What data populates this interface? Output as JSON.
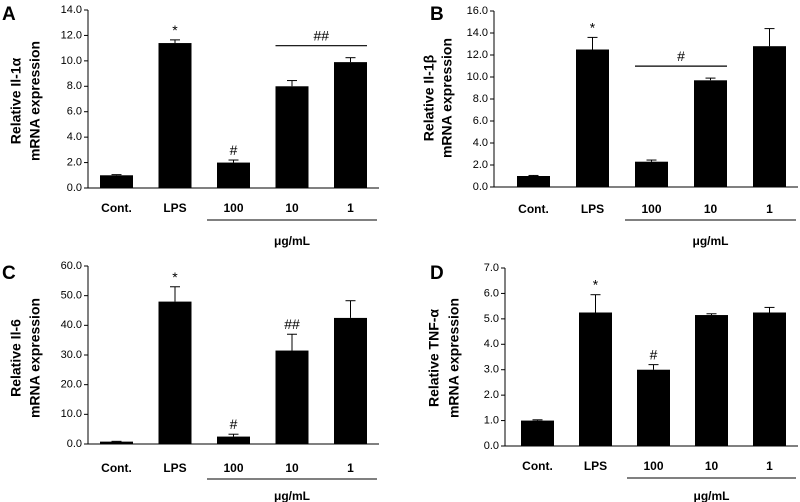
{
  "chart_data": [
    {
      "type": "bar",
      "panel_label": "A",
      "ylabel_line1": "Relative Il-1α",
      "ylabel_line2": "mRNA expression",
      "categories": [
        "Cont.",
        "LPS",
        "100",
        "10",
        "1"
      ],
      "values": [
        1.0,
        11.4,
        2.0,
        8.0,
        9.9
      ],
      "errors": [
        0.05,
        0.25,
        0.2,
        0.45,
        0.35
      ],
      "ylim": [
        0,
        14
      ],
      "yticks": [
        "0.0",
        "2.0",
        "4.0",
        "6.0",
        "8.0",
        "10.0",
        "12.0",
        "14.0"
      ],
      "dose_unit": "μg/mL",
      "markers": [
        {
          "category": "LPS",
          "text": "*"
        },
        {
          "category": "100",
          "text": "#"
        }
      ],
      "group_marker": {
        "from": "10",
        "to": "1",
        "text": "##"
      }
    },
    {
      "type": "bar",
      "panel_label": "B",
      "ylabel_line1": "Relative Il-1β",
      "ylabel_line2": "mRNA expression",
      "categories": [
        "Cont.",
        "LPS",
        "100",
        "10",
        "1"
      ],
      "values": [
        1.0,
        12.5,
        2.3,
        9.7,
        12.8
      ],
      "errors": [
        0.05,
        1.1,
        0.15,
        0.2,
        1.6
      ],
      "ylim": [
        0,
        16
      ],
      "yticks": [
        "0.0",
        "2.0",
        "4.0",
        "6.0",
        "8.0",
        "10.0",
        "12.0",
        "14.0",
        "16.0"
      ],
      "dose_unit": "μg/mL",
      "markers": [
        {
          "category": "LPS",
          "text": "*"
        }
      ],
      "group_marker": {
        "from": "100",
        "to": "10",
        "text": "#"
      }
    },
    {
      "type": "bar",
      "panel_label": "C",
      "ylabel_line1": "Relative Il-6",
      "ylabel_line2": "mRNA expression",
      "categories": [
        "Cont.",
        "LPS",
        "100",
        "10",
        "1"
      ],
      "values": [
        0.8,
        48.0,
        2.5,
        31.5,
        42.5
      ],
      "errors": [
        0.1,
        5.0,
        0.8,
        5.5,
        5.8
      ],
      "ylim": [
        0,
        60
      ],
      "yticks": [
        "0.0",
        "10.0",
        "20.0",
        "30.0",
        "40.0",
        "50.0",
        "60.0"
      ],
      "dose_unit": "μg/mL",
      "markers": [
        {
          "category": "LPS",
          "text": "*"
        },
        {
          "category": "100",
          "text": "#"
        },
        {
          "category": "10",
          "text": "##"
        }
      ]
    },
    {
      "type": "bar",
      "panel_label": "D",
      "ylabel_line1": "Relative TNF-α",
      "ylabel_line2": "mRNA expression",
      "categories": [
        "Cont.",
        "LPS",
        "100",
        "10",
        "1"
      ],
      "values": [
        1.0,
        5.25,
        3.0,
        5.15,
        5.25
      ],
      "errors": [
        0.03,
        0.7,
        0.2,
        0.05,
        0.2
      ],
      "ylim": [
        0,
        7
      ],
      "yticks": [
        "0.0",
        "1.0",
        "2.0",
        "3.0",
        "4.0",
        "5.0",
        "6.0",
        "7.0"
      ],
      "dose_unit": "μg/mL",
      "markers": [
        {
          "category": "LPS",
          "text": "*"
        },
        {
          "category": "100",
          "text": "#"
        }
      ]
    }
  ]
}
